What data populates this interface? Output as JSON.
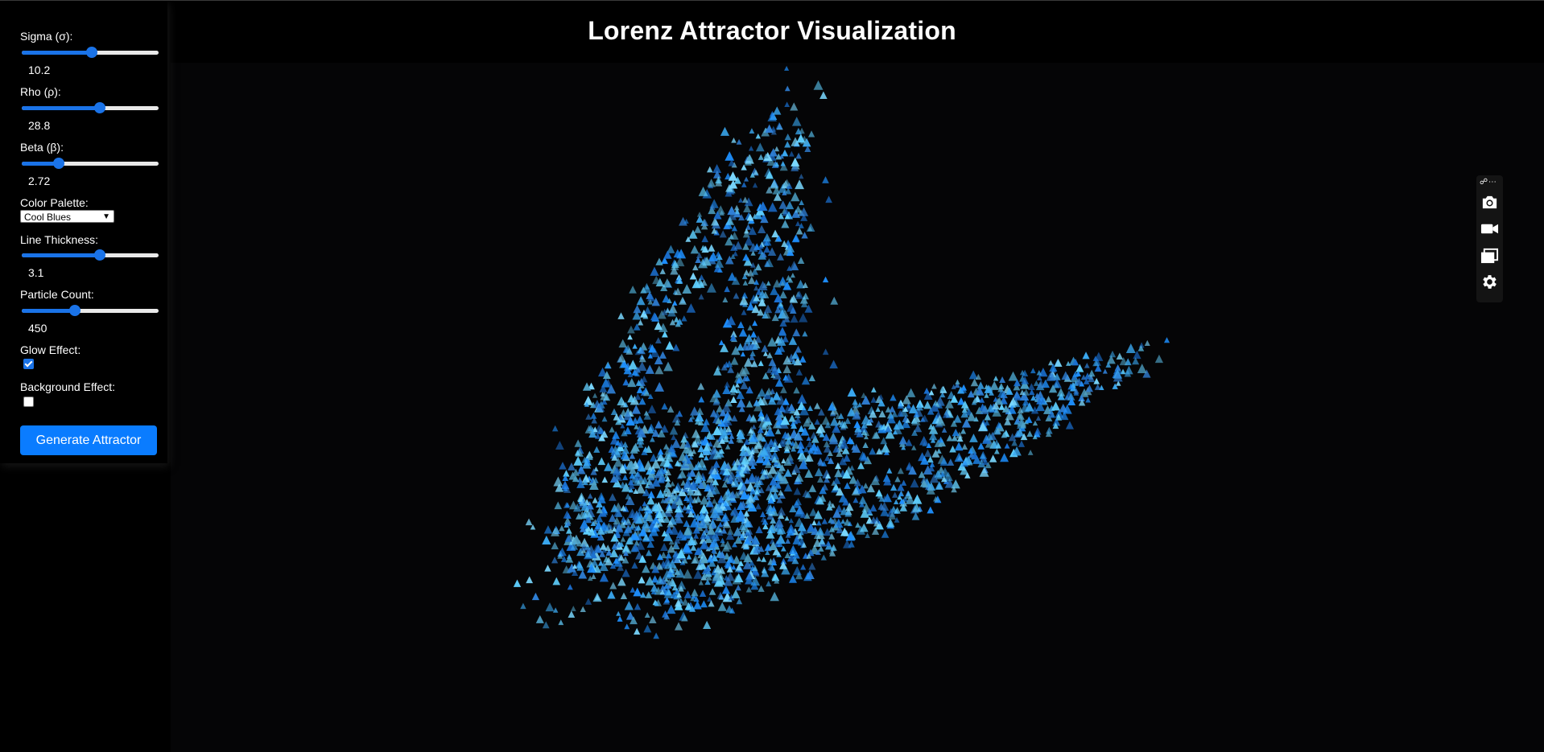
{
  "title": "Lorenz Attractor Visualization",
  "controls": {
    "sigma": {
      "label": "Sigma (σ):",
      "value": "10.2",
      "fraction": 0.51
    },
    "rho": {
      "label": "Rho (ρ):",
      "value": "28.8",
      "fraction": 0.57
    },
    "beta": {
      "label": "Beta (β):",
      "value": "2.72",
      "fraction": 0.27
    },
    "palette": {
      "label": "Color Palette:",
      "selected": "Cool Blues"
    },
    "thickness": {
      "label": "Line Thickness:",
      "value": "3.1",
      "fraction": 0.57
    },
    "particles": {
      "label": "Particle Count:",
      "value": "450",
      "fraction": 0.39
    },
    "glow": {
      "label": "Glow Effect:",
      "checked": true
    },
    "background": {
      "label": "Background Effect:",
      "checked": false
    },
    "generate_label": "Generate Attractor"
  },
  "toolbar": {
    "icons": [
      "link-icon",
      "more-icon",
      "camera-icon",
      "video-icon",
      "windows-icon",
      "gear-icon"
    ]
  },
  "colors": {
    "accent": "#0a7cff",
    "particle_blue": "#1e90ff",
    "particle_light": "#5fd0ff"
  }
}
